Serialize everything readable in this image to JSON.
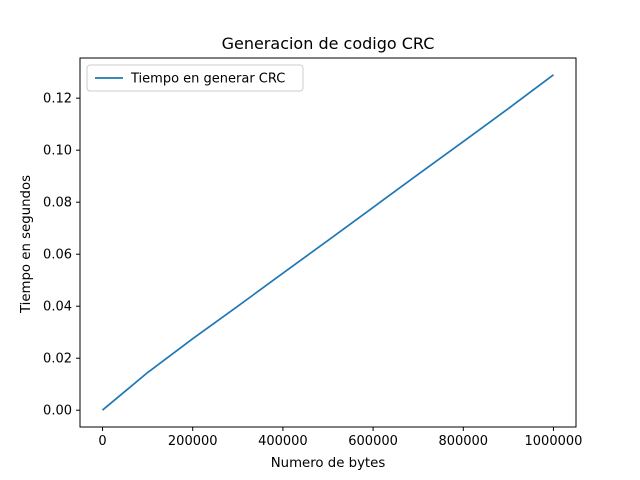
{
  "chart_data": {
    "type": "line",
    "title": "Generacion de codigo CRC",
    "xlabel": "Numero de bytes",
    "ylabel": "Tiempo en segundos",
    "xlim": [
      -50000,
      1050000
    ],
    "ylim": [
      -0.00645,
      0.13545
    ],
    "x_ticks": [
      0,
      200000,
      400000,
      600000,
      800000,
      1000000
    ],
    "x_tick_labels": [
      "0",
      "200000",
      "400000",
      "600000",
      "800000",
      "1000000"
    ],
    "y_ticks": [
      0.0,
      0.02,
      0.04,
      0.06,
      0.08,
      0.1,
      0.12
    ],
    "y_tick_labels": [
      "0.00",
      "0.02",
      "0.04",
      "0.06",
      "0.08",
      "0.10",
      "0.12"
    ],
    "grid": false,
    "legend_position": "top-left",
    "series": [
      {
        "name": "Tiempo en generar CRC",
        "color": "#1f77b4",
        "x": [
          0,
          1000,
          10000,
          100000,
          200000,
          300000,
          400000,
          500000,
          600000,
          700000,
          800000,
          900000,
          1000000
        ],
        "y": [
          0.0,
          0.0002,
          0.0015,
          0.0145,
          0.0275,
          0.04,
          0.0527,
          0.0653,
          0.078,
          0.0907,
          0.1033,
          0.116,
          0.129
        ]
      }
    ]
  }
}
